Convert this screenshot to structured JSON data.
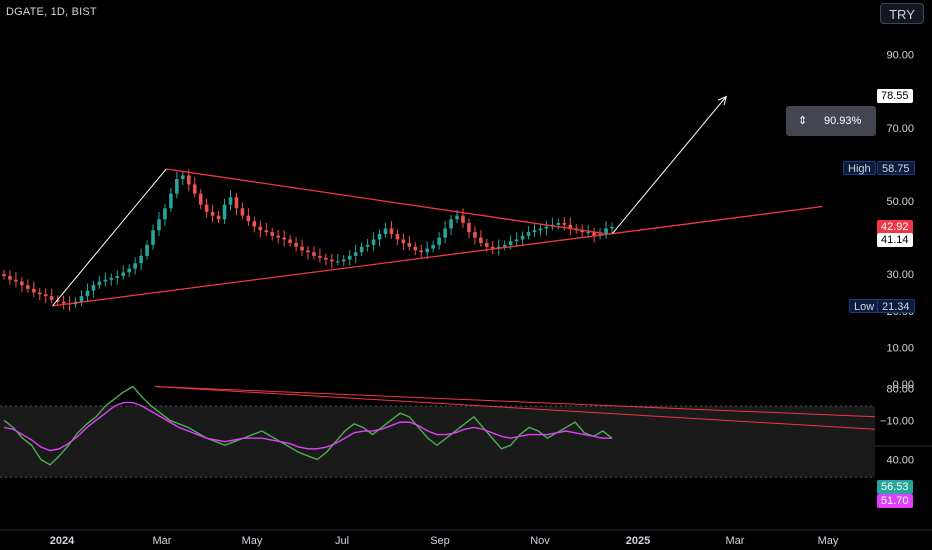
{
  "header": {
    "symbol": "DGATE, 1D, BIST",
    "currency_button": "TRY"
  },
  "colors": {
    "background": "#000000",
    "up": "#26a69a",
    "down": "#ef5350",
    "trendline": "#f23645",
    "arrow": "#ffffff",
    "rsi_line": "#4caf50",
    "rsi_ma": "#e040fb"
  },
  "measure": {
    "icon": "range-arrows-icon",
    "percent": "90.93%"
  },
  "price_labels": {
    "target": "78.55",
    "high_label": "High",
    "high_value": "58.75",
    "last_close": "42.92",
    "trendline_value": "41.14",
    "low_label": "Low",
    "low_value": "21.34"
  },
  "rsi_labels": {
    "rsi": "56.53",
    "ma": "51.70"
  },
  "chart_data": [
    {
      "type": "candlestick",
      "title": "DGATE, 1D, BIST",
      "y_ticks": [
        "90.00",
        "70.00",
        "60.00",
        "50.00",
        "30.00",
        "20.00",
        "10.00",
        "0.00",
        "−10.00"
      ],
      "ylim": [
        -12,
        97
      ],
      "x_ticks": [
        "2024",
        "Mar",
        "May",
        "Jul",
        "Sep",
        "Nov",
        "2025",
        "Mar",
        "May"
      ],
      "closes": [
        29.5,
        28.5,
        28,
        27,
        26,
        25,
        24.5,
        24,
        23,
        22.5,
        22,
        21.8,
        22.5,
        24,
        25.5,
        27,
        28,
        28.5,
        29,
        29.5,
        30.5,
        31.5,
        33,
        35,
        38,
        42,
        45,
        48,
        52,
        56,
        57,
        54.5,
        52,
        49,
        47,
        46,
        45,
        49,
        51,
        48,
        46,
        44.5,
        43,
        42,
        41.5,
        40.5,
        40,
        39.5,
        38.5,
        37.5,
        36.5,
        36,
        35,
        34.5,
        34,
        33.5,
        33.5,
        34,
        35,
        36,
        37.5,
        38,
        39.5,
        41,
        42.5,
        41,
        39.5,
        38.5,
        37.5,
        36.5,
        36,
        37,
        38,
        40,
        42.5,
        45,
        46,
        44,
        41.5,
        40,
        38.5,
        37.5,
        37,
        37.5,
        38,
        39,
        39.5,
        40.5,
        41.5,
        42,
        42.5,
        43,
        43.5,
        44,
        43.5,
        42.5,
        42,
        41.5,
        41.5,
        40.5,
        41,
        42.5,
        42.92
      ],
      "high": 58.75,
      "low": 21.34,
      "last": 42.92,
      "annotations": {
        "upper_trendline": [
          [
            0.19,
            58.75
          ],
          [
            0.69,
            41.14
          ]
        ],
        "lower_trendline": [
          [
            0.06,
            21.34
          ],
          [
            0.94,
            48.5
          ]
        ],
        "rise_arrow": [
          [
            0.06,
            21.34
          ],
          [
            0.19,
            58.75
          ]
        ],
        "projection_arrow": [
          [
            0.7,
            41.14
          ],
          [
            0.83,
            78.55
          ]
        ],
        "measure_percent": "90.93%"
      }
    },
    {
      "type": "line",
      "title": "RSI",
      "y_ticks": [
        "80.00",
        "40.00"
      ],
      "ylim": [
        30,
        85
      ],
      "series": [
        {
          "values": [
            62,
            58,
            52,
            48,
            40,
            37,
            42,
            48,
            55,
            60,
            64,
            70,
            74,
            78,
            81,
            75,
            70,
            66,
            62,
            60,
            58,
            55,
            52,
            50,
            48,
            50,
            52,
            54,
            56,
            53,
            50,
            47,
            44,
            42,
            40,
            44,
            50,
            56,
            60,
            58,
            54,
            58,
            62,
            66,
            64,
            58,
            52,
            48,
            52,
            56,
            60,
            64,
            58,
            52,
            46,
            48,
            54,
            58,
            56,
            52,
            55,
            58,
            61,
            55,
            53,
            56,
            52
          ]
        },
        {
          "values": [
            58,
            57,
            54,
            51,
            47,
            45,
            46,
            49,
            53,
            58,
            62,
            66,
            70,
            72,
            72,
            70,
            67,
            64,
            61,
            58,
            56,
            54,
            52,
            51,
            50,
            51,
            52,
            52,
            52,
            51,
            50,
            49,
            47,
            46,
            46,
            47,
            49,
            52,
            55,
            56,
            56,
            57,
            59,
            61,
            61,
            59,
            56,
            54,
            54,
            55,
            57,
            58,
            57,
            55,
            53,
            52,
            53,
            54,
            54,
            54,
            55,
            56,
            55,
            54,
            53,
            52,
            52
          ]
        }
      ],
      "last_values": [
        56.53,
        51.7
      ]
    }
  ]
}
